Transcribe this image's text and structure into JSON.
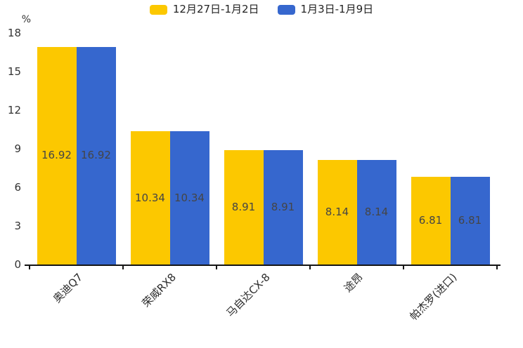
{
  "unit_label": "%",
  "legend": {
    "items": [
      {
        "label": "12月27日-1月2日",
        "color": "#FCC800"
      },
      {
        "label": "1月3日-1月9日",
        "color": "#3667CE"
      }
    ]
  },
  "chart_data": {
    "type": "bar",
    "title": "",
    "ylabel": "%",
    "xlabel": "",
    "categories": [
      "奥迪Q7",
      "荣威RX8",
      "马自达CX-8",
      "途昂",
      "帕杰罗(进口)"
    ],
    "series": [
      {
        "name": "12月27日-1月2日",
        "color": "#FCC800",
        "values": [
          16.92,
          10.34,
          8.91,
          8.14,
          6.81
        ]
      },
      {
        "name": "1月3日-1月9日",
        "color": "#3667CE",
        "values": [
          16.92,
          10.34,
          8.91,
          8.14,
          6.81
        ]
      }
    ],
    "y_ticks": [
      0,
      3,
      6,
      9,
      12,
      15,
      18
    ],
    "ylim": [
      0,
      18
    ],
    "grid": false,
    "legend_position": "top-center",
    "value_labels": "inside-center"
  }
}
